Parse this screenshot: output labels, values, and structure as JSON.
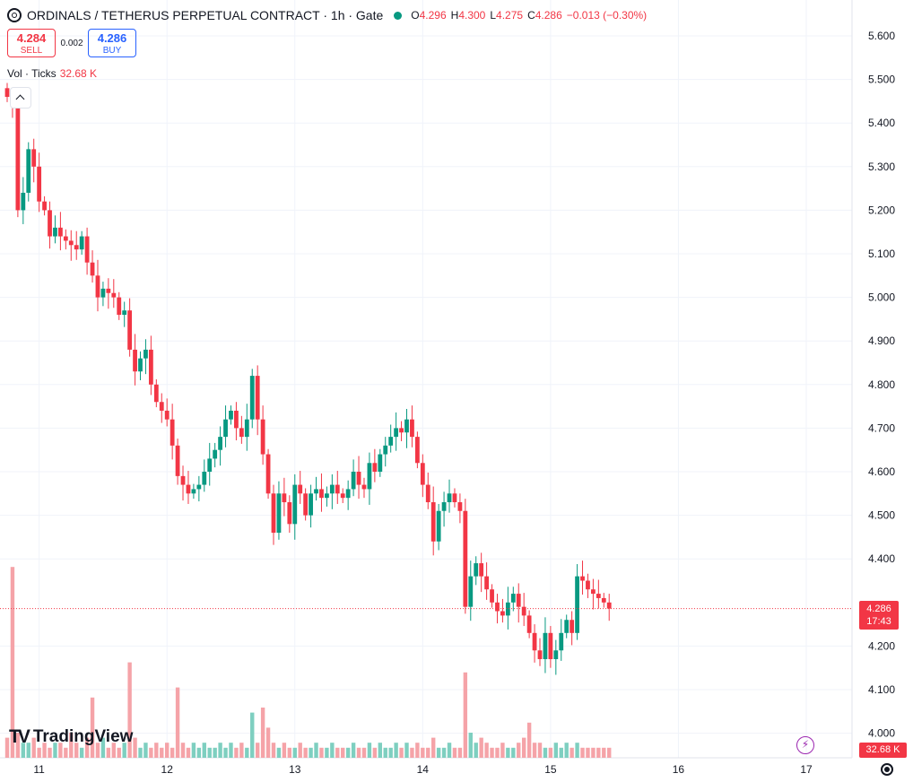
{
  "header": {
    "title": "ORDINALS / TETHERUS PERPETUAL CONTRACT · 1h · Gate",
    "icon": "exchange-symbol-icon",
    "ohlc": {
      "o_label": "O",
      "o": "4.296",
      "h_label": "H",
      "h": "4.300",
      "l_label": "L",
      "l": "4.275",
      "c_label": "C",
      "c": "4.286",
      "change": "−0.013 (−0.30%)"
    }
  },
  "trade": {
    "sell_price": "4.284",
    "sell_label": "SELL",
    "spread": "0.002",
    "buy_price": "4.286",
    "buy_label": "BUY"
  },
  "volume_legend": {
    "label": "Vol · Ticks",
    "value": "32.68 K"
  },
  "price_tag": {
    "price": "4.286",
    "countdown": "17:43"
  },
  "volume_tag": "32.68 K",
  "brand": {
    "name": "TradingView",
    "mark": "TV"
  },
  "colors": {
    "up": "#089981",
    "down": "#f23645",
    "vol_up": "#7ecfc0",
    "vol_down": "#f5a3a8"
  },
  "chart_data": {
    "type": "candlestick",
    "ylim": [
      4.0,
      5.6
    ],
    "y_ticks": [
      "5.600",
      "5.500",
      "5.400",
      "5.300",
      "5.200",
      "5.100",
      "5.000",
      "4.900",
      "4.800",
      "4.700",
      "4.600",
      "4.500",
      "4.400",
      "4.200",
      "4.100",
      "4.000"
    ],
    "x_ticks": [
      {
        "label": "11",
        "hour": 6
      },
      {
        "label": "12",
        "hour": 30
      },
      {
        "label": "13",
        "hour": 54
      },
      {
        "label": "14",
        "hour": 78
      },
      {
        "label": "15",
        "hour": 102
      },
      {
        "label": "16",
        "hour": 126
      },
      {
        "label": "17",
        "hour": 150
      }
    ],
    "last_price": 4.286,
    "close": [
      5.46,
      5.44,
      5.2,
      5.24,
      5.34,
      5.3,
      5.22,
      5.2,
      5.14,
      5.16,
      5.14,
      5.13,
      5.12,
      5.11,
      5.14,
      5.08,
      5.05,
      5.0,
      5.02,
      5.01,
      5.0,
      4.96,
      4.97,
      4.88,
      4.83,
      4.86,
      4.88,
      4.8,
      4.76,
      4.74,
      4.72,
      4.66,
      4.59,
      4.57,
      4.55,
      4.56,
      4.57,
      4.6,
      4.63,
      4.65,
      4.68,
      4.72,
      4.74,
      4.7,
      4.68,
      4.72,
      4.82,
      4.72,
      4.64,
      4.55,
      4.46,
      4.55,
      4.53,
      4.48,
      4.57,
      4.55,
      4.5,
      4.55,
      4.56,
      4.54,
      4.55,
      4.57,
      4.55,
      4.54,
      4.56,
      4.6,
      4.57,
      4.56,
      4.62,
      4.6,
      4.64,
      4.66,
      4.68,
      4.7,
      4.69,
      4.72,
      4.68,
      4.62,
      4.57,
      4.53,
      4.44,
      4.51,
      4.53,
      4.55,
      4.53,
      4.51,
      4.29,
      4.36,
      4.39,
      4.36,
      4.33,
      4.3,
      4.28,
      4.27,
      4.3,
      4.32,
      4.29,
      4.27,
      4.23,
      4.19,
      4.17,
      4.23,
      4.17,
      4.19,
      4.23,
      4.26,
      4.23,
      4.36,
      4.35,
      4.33,
      4.32,
      4.31,
      4.3,
      4.286
    ],
    "volume": [
      0.04,
      0.38,
      0.05,
      0.03,
      0.03,
      0.04,
      0.02,
      0.03,
      0.02,
      0.03,
      0.03,
      0.02,
      0.05,
      0.03,
      0.02,
      0.04,
      0.12,
      0.03,
      0.04,
      0.02,
      0.03,
      0.02,
      0.03,
      0.19,
      0.04,
      0.02,
      0.03,
      0.02,
      0.03,
      0.02,
      0.03,
      0.02,
      0.14,
      0.03,
      0.02,
      0.03,
      0.02,
      0.03,
      0.02,
      0.02,
      0.03,
      0.02,
      0.03,
      0.02,
      0.03,
      0.02,
      0.09,
      0.03,
      0.1,
      0.06,
      0.03,
      0.02,
      0.03,
      0.02,
      0.02,
      0.03,
      0.02,
      0.02,
      0.03,
      0.02,
      0.02,
      0.03,
      0.02,
      0.02,
      0.02,
      0.03,
      0.02,
      0.02,
      0.03,
      0.02,
      0.03,
      0.02,
      0.02,
      0.03,
      0.02,
      0.03,
      0.02,
      0.03,
      0.02,
      0.02,
      0.04,
      0.02,
      0.02,
      0.03,
      0.02,
      0.02,
      0.17,
      0.05,
      0.03,
      0.04,
      0.03,
      0.02,
      0.02,
      0.03,
      0.02,
      0.02,
      0.03,
      0.04,
      0.07,
      0.03,
      0.03,
      0.02,
      0.02,
      0.03,
      0.02,
      0.03,
      0.02,
      0.03,
      0.02,
      0.02,
      0.02,
      0.02,
      0.02,
      0.02
    ]
  }
}
